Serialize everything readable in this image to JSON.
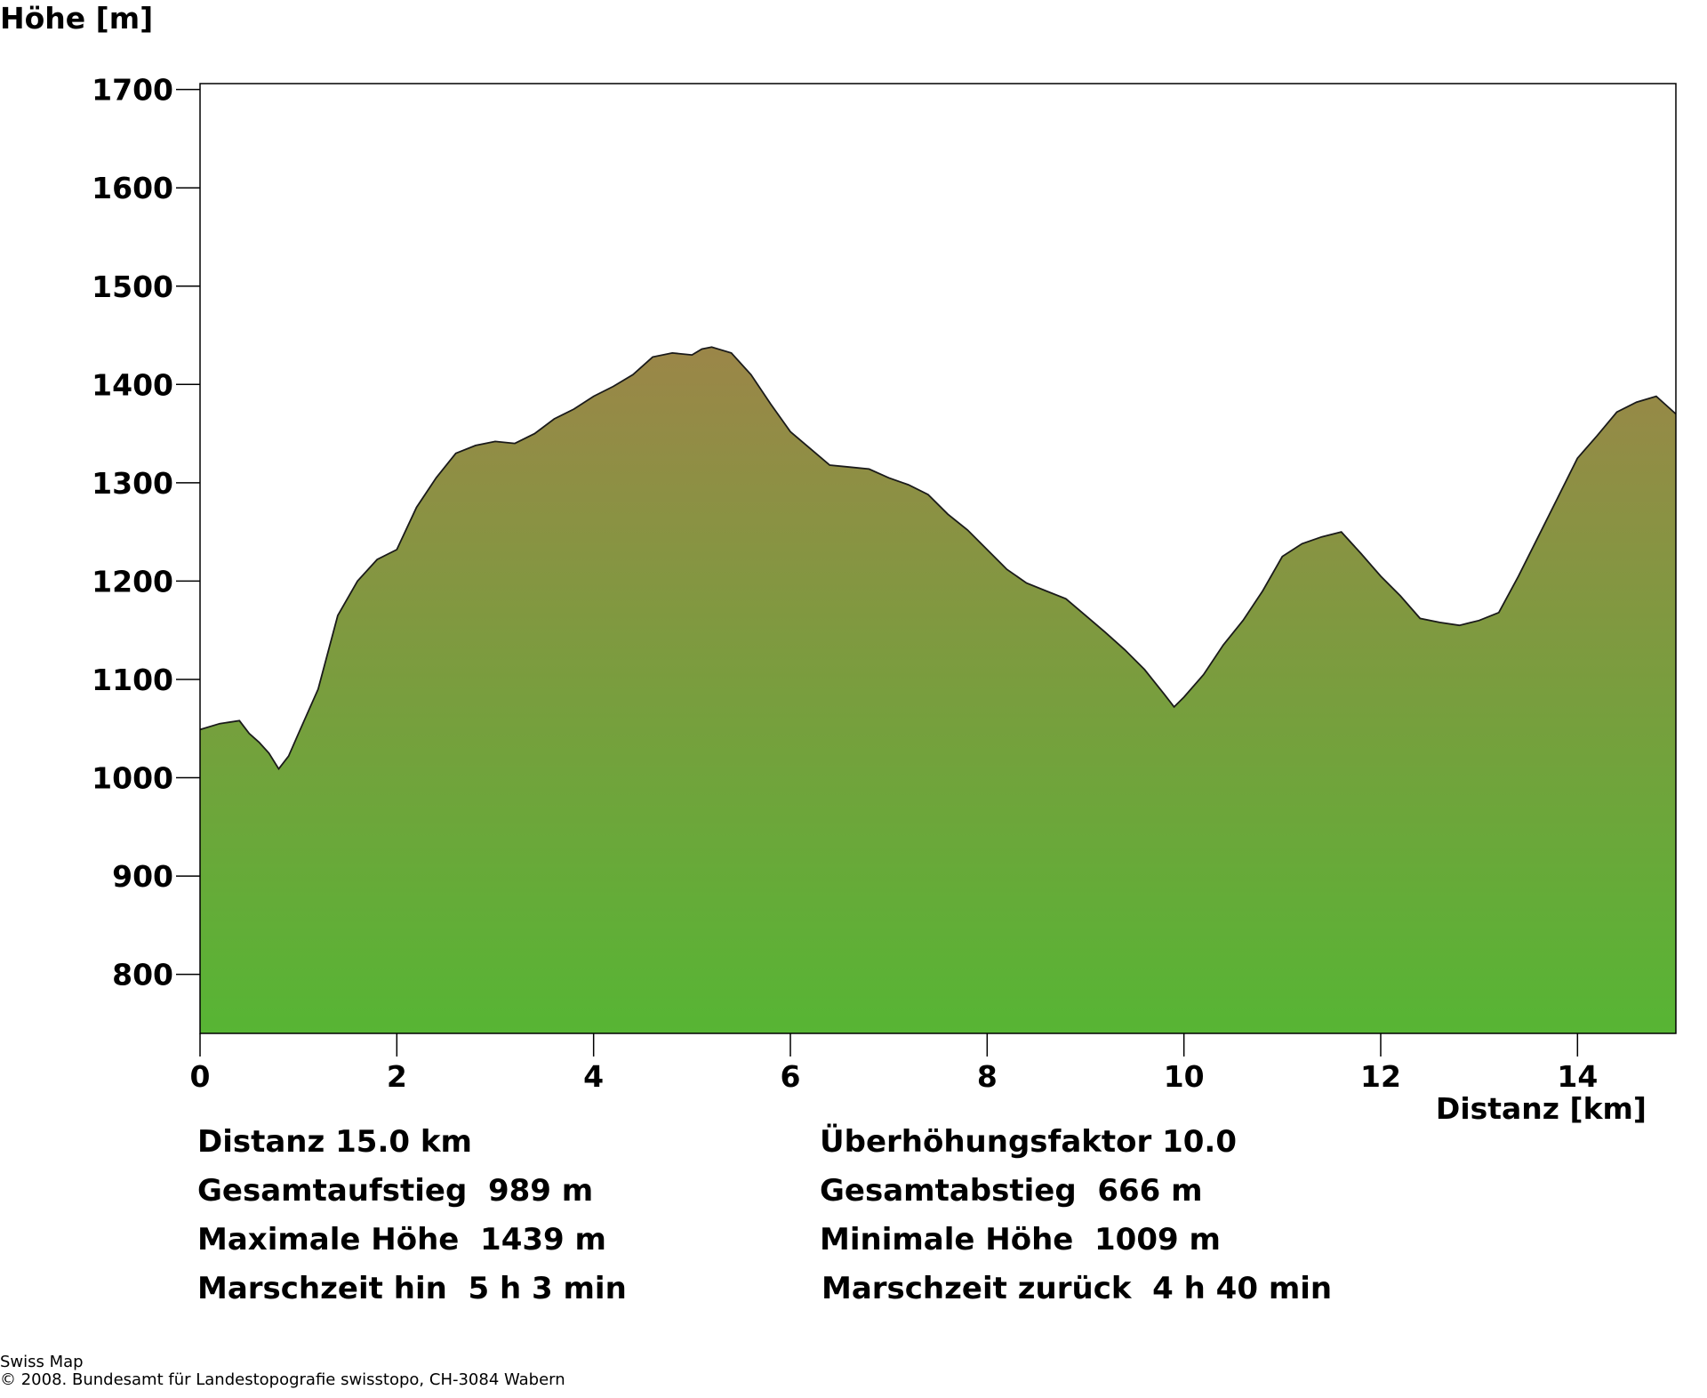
{
  "chart_data": {
    "type": "area",
    "xlabel": "Distanz [km]",
    "ylabel": "Höhe [m]",
    "xlim": [
      0,
      15
    ],
    "ylim": [
      740,
      1706
    ],
    "xticks": [
      0,
      2,
      4,
      6,
      8,
      10,
      12,
      14
    ],
    "yticks": [
      800,
      900,
      1000,
      1100,
      1200,
      1300,
      1400,
      1500,
      1600,
      1700
    ],
    "grid": false,
    "fill_gradient": [
      "#9B8648",
      "#57B534"
    ],
    "profile": {
      "x": [
        0,
        0.2,
        0.4,
        0.5,
        0.6,
        0.7,
        0.8,
        0.9,
        1.0,
        1.2,
        1.4,
        1.6,
        1.8,
        2.0,
        2.2,
        2.4,
        2.6,
        2.8,
        3.0,
        3.2,
        3.4,
        3.6,
        3.8,
        4.0,
        4.2,
        4.4,
        4.6,
        4.8,
        5.0,
        5.1,
        5.2,
        5.4,
        5.6,
        5.8,
        6.0,
        6.2,
        6.4,
        6.6,
        6.8,
        7.0,
        7.2,
        7.4,
        7.6,
        7.8,
        8.0,
        8.2,
        8.4,
        8.6,
        8.8,
        9.0,
        9.2,
        9.4,
        9.6,
        9.8,
        9.9,
        10.0,
        10.2,
        10.4,
        10.6,
        10.8,
        11.0,
        11.2,
        11.4,
        11.6,
        11.8,
        12.0,
        12.2,
        12.4,
        12.6,
        12.8,
        13.0,
        13.2,
        13.4,
        13.6,
        13.8,
        14.0,
        14.2,
        14.4,
        14.6,
        14.8,
        15.0
      ],
      "y": [
        1049,
        1055,
        1058,
        1045,
        1036,
        1025,
        1009,
        1022,
        1045,
        1090,
        1165,
        1200,
        1222,
        1232,
        1275,
        1305,
        1330,
        1338,
        1342,
        1340,
        1350,
        1365,
        1375,
        1388,
        1398,
        1410,
        1428,
        1432,
        1430,
        1436,
        1438,
        1432,
        1410,
        1380,
        1352,
        1335,
        1318,
        1316,
        1314,
        1305,
        1298,
        1288,
        1268,
        1252,
        1232,
        1212,
        1198,
        1190,
        1182,
        1165,
        1148,
        1130,
        1110,
        1085,
        1072,
        1082,
        1105,
        1135,
        1160,
        1190,
        1225,
        1238,
        1245,
        1250,
        1228,
        1205,
        1185,
        1162,
        1158,
        1155,
        1160,
        1168,
        1205,
        1245,
        1285,
        1325,
        1348,
        1372,
        1382,
        1388,
        1370
      ]
    }
  },
  "stats": {
    "left": [
      "Distanz 15.0 km",
      "Gesamtaufstieg  989 m",
      "Maximale Höhe  1439 m",
      "Marschzeit hin  5 h 3 min"
    ],
    "right": [
      "Überhöhungsfaktor 10.0",
      "Gesamtabstieg  666 m",
      "Minimale Höhe  1009 m",
      "Marschzeit zurück  4 h 40 min"
    ]
  },
  "credit": {
    "line1": "Swiss Map",
    "line2": "© 2008. Bundesamt für Landestopografie swisstopo, CH-3084 Wabern"
  }
}
